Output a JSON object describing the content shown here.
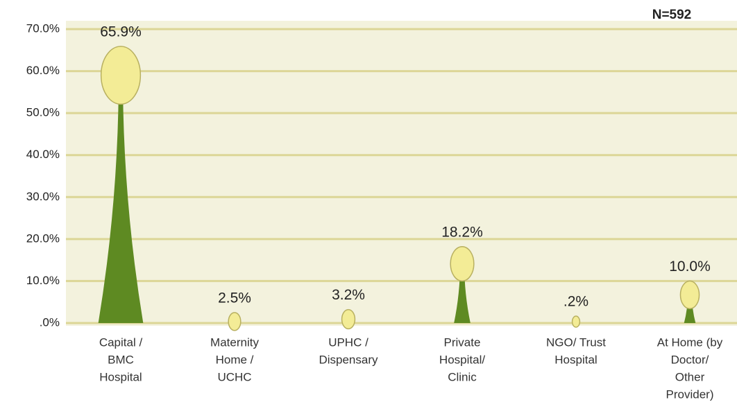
{
  "chart_data": {
    "type": "tulip",
    "annotation": "N=592",
    "categories": [
      [
        "Capital /",
        "BMC",
        "Hospital"
      ],
      [
        "Maternity",
        "Home /",
        "UCHC"
      ],
      [
        "UPHC /",
        "Dispensary"
      ],
      [
        "Private",
        "Hospital/",
        "Clinic"
      ],
      [
        "NGO/ Trust",
        "Hospital"
      ],
      [
        "At Home (by",
        "Doctor/",
        "Other",
        "Provider)"
      ]
    ],
    "values": [
      65.9,
      2.5,
      3.2,
      18.2,
      0.2,
      10.0
    ],
    "value_labels": [
      "65.9%",
      "2.5%",
      "3.2%",
      "18.2%",
      ".2%",
      "10.0%"
    ],
    "color": "#5e8a22",
    "bulb_color": "#f3ec96",
    "ylim": [
      0,
      70
    ],
    "yticks": [
      {
        "value": 0,
        "label": ".0%"
      },
      {
        "value": 10,
        "label": "10.0%"
      },
      {
        "value": 20,
        "label": "20.0%"
      },
      {
        "value": 30,
        "label": "30.0%"
      },
      {
        "value": 40,
        "label": "40.0%"
      },
      {
        "value": 50,
        "label": "50.0%"
      },
      {
        "value": 60,
        "label": "60.0%"
      },
      {
        "value": 70,
        "label": "70.0%"
      }
    ],
    "grid": true
  }
}
